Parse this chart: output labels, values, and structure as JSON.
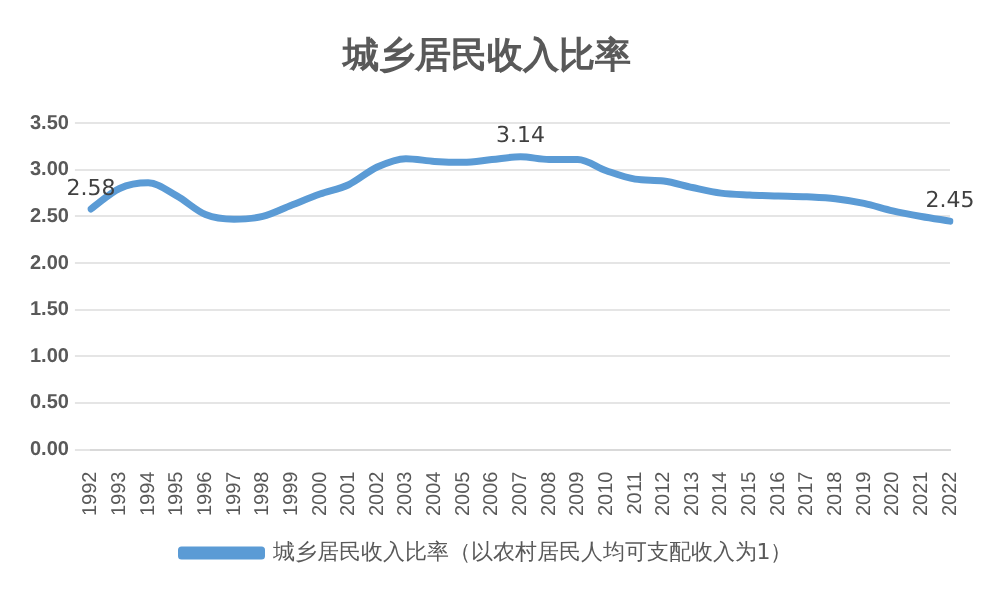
{
  "chart_data": {
    "type": "line",
    "title": "城乡居民收入比率",
    "categories": [
      "1992",
      "1993",
      "1994",
      "1995",
      "1996",
      "1997",
      "1998",
      "1999",
      "2000",
      "2001",
      "2002",
      "2003",
      "2004",
      "2005",
      "2006",
      "2007",
      "2008",
      "2009",
      "2010",
      "2011",
      "2012",
      "2013",
      "2014",
      "2015",
      "2016",
      "2017",
      "2018",
      "2019",
      "2020",
      "2021",
      "2022"
    ],
    "series": [
      {
        "name": "城乡居民收入比率（以农村居民人均可支配收入为1）",
        "color": "#5b9bd5",
        "values": [
          2.58,
          2.8,
          2.86,
          2.72,
          2.52,
          2.47,
          2.5,
          2.62,
          2.74,
          2.84,
          3.03,
          3.12,
          3.09,
          3.08,
          3.11,
          3.14,
          3.11,
          3.11,
          2.99,
          2.9,
          2.88,
          2.81,
          2.75,
          2.73,
          2.72,
          2.71,
          2.69,
          2.64,
          2.56,
          2.5,
          2.45
        ],
        "value_labels": [
          "2.58",
          null,
          null,
          null,
          null,
          null,
          null,
          null,
          null,
          null,
          null,
          null,
          null,
          null,
          null,
          "3.14",
          null,
          null,
          null,
          null,
          null,
          null,
          null,
          null,
          null,
          null,
          null,
          null,
          null,
          null,
          "2.45"
        ]
      }
    ],
    "ylim": [
      0,
      3.5
    ],
    "yticks": [
      {
        "value": 0,
        "label": "0.00"
      },
      {
        "value": 0.5,
        "label": "0.50"
      },
      {
        "value": 1,
        "label": "1.00"
      },
      {
        "value": 1.5,
        "label": "1.50"
      },
      {
        "value": 2,
        "label": "2.00"
      },
      {
        "value": 2.5,
        "label": "2.50"
      },
      {
        "value": 3,
        "label": "3.00"
      },
      {
        "value": 3.5,
        "label": "3.50"
      }
    ],
    "grid": "y",
    "legend": "bottom",
    "marker": "none",
    "line_style": "solid"
  }
}
